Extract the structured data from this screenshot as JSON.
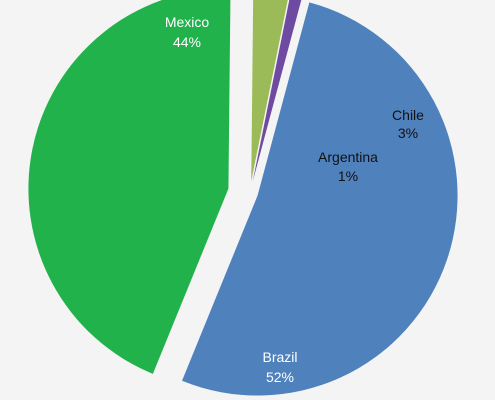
{
  "chart_data": {
    "type": "pie",
    "exploded": true,
    "slices": [
      {
        "label": "Brazil",
        "value": 52,
        "value_label": "52%",
        "color": "#4f81bd",
        "label_color": "#ffffff"
      },
      {
        "label": "Mexico",
        "value": 44,
        "value_label": "44%",
        "color": "#22b24c",
        "label_color": "#ffffff"
      },
      {
        "label": "Chile",
        "value": 3,
        "value_label": "3%",
        "color": "#9bbb59",
        "label_color": "#111111"
      },
      {
        "label": "Argentina",
        "value": 1,
        "value_label": "1%",
        "color": "#6e4aa0",
        "label_color": "#111111"
      }
    ],
    "legend": "none"
  }
}
